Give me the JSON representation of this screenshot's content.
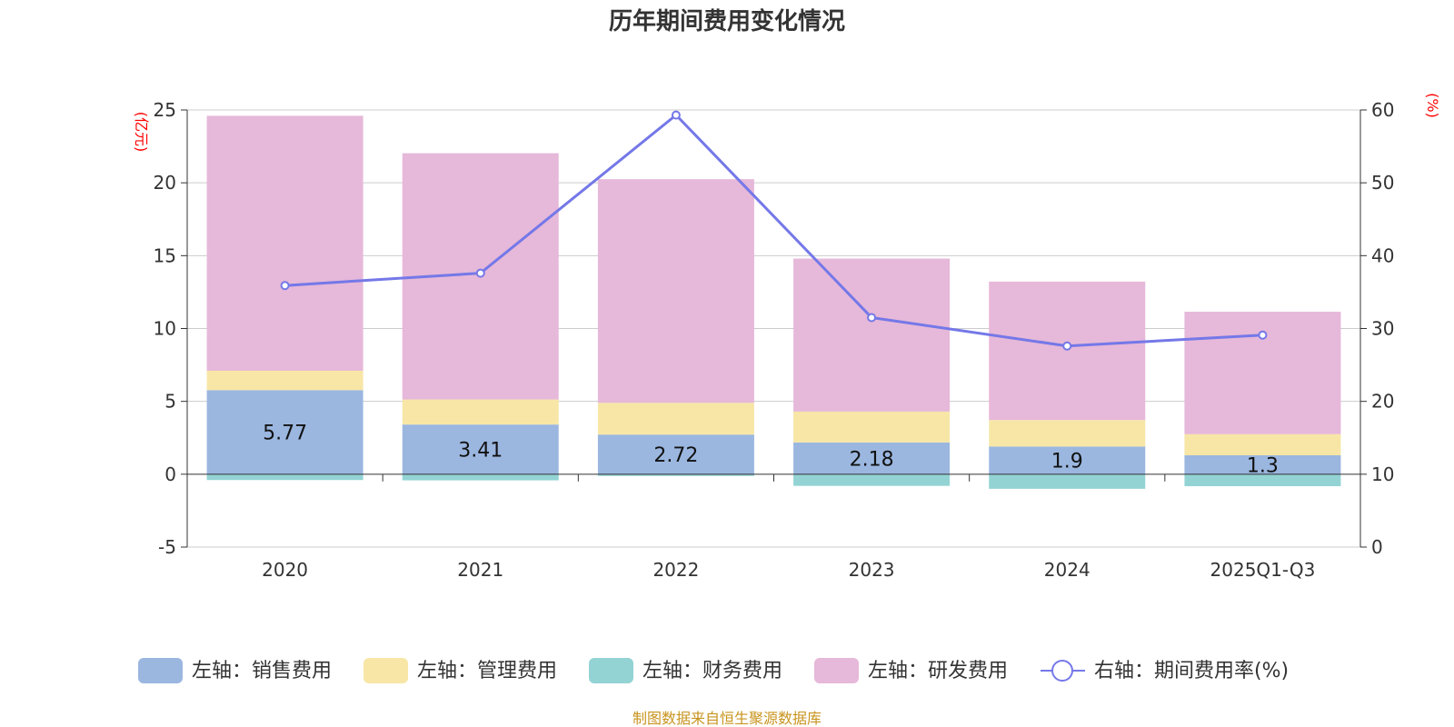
{
  "chart_data": {
    "type": "bar",
    "stacked": true,
    "title": "历年期间费用变化情况",
    "categories": [
      "2020",
      "2021",
      "2022",
      "2023",
      "2024",
      "2025Q1-Q3"
    ],
    "series": [
      {
        "name": "左轴：销售费用",
        "axis": "left",
        "color": "#9bb7e0",
        "values": [
          5.77,
          3.41,
          2.72,
          2.18,
          1.9,
          1.3
        ],
        "labels": [
          "5.77",
          "3.41",
          "2.72",
          "2.18",
          "1.9",
          "1.3"
        ]
      },
      {
        "name": "左轴：管理费用",
        "axis": "left",
        "color": "#f7e6a6",
        "values": [
          1.33,
          1.72,
          2.18,
          2.12,
          1.82,
          1.45
        ]
      },
      {
        "name": "左轴：财务费用",
        "axis": "left",
        "color": "#93d3d4",
        "values": [
          -0.4,
          -0.42,
          -0.12,
          -0.8,
          -1.0,
          -0.82
        ]
      },
      {
        "name": "左轴：研发费用",
        "axis": "left",
        "color": "#e6b8d9",
        "values": [
          17.5,
          16.9,
          15.35,
          10.5,
          9.5,
          8.4
        ]
      },
      {
        "name": "右轴：期间费用率(%)",
        "axis": "right",
        "type": "line",
        "color": "#7478e8",
        "values": [
          35.9,
          37.6,
          59.3,
          31.5,
          27.6,
          29.1
        ]
      }
    ],
    "left_axis": {
      "unit": "(亿元)",
      "min": -5,
      "max": 25,
      "ticks": [
        "25",
        "20",
        "15",
        "10",
        "5",
        "0",
        "-5"
      ]
    },
    "right_axis": {
      "unit": "(%)",
      "min": 0,
      "max": 60,
      "ticks": [
        "60",
        "50",
        "40",
        "30",
        "20",
        "10",
        "0"
      ]
    },
    "legend_position": "bottom",
    "grid": true
  },
  "source_text": "制图数据来自恒生聚源数据库"
}
